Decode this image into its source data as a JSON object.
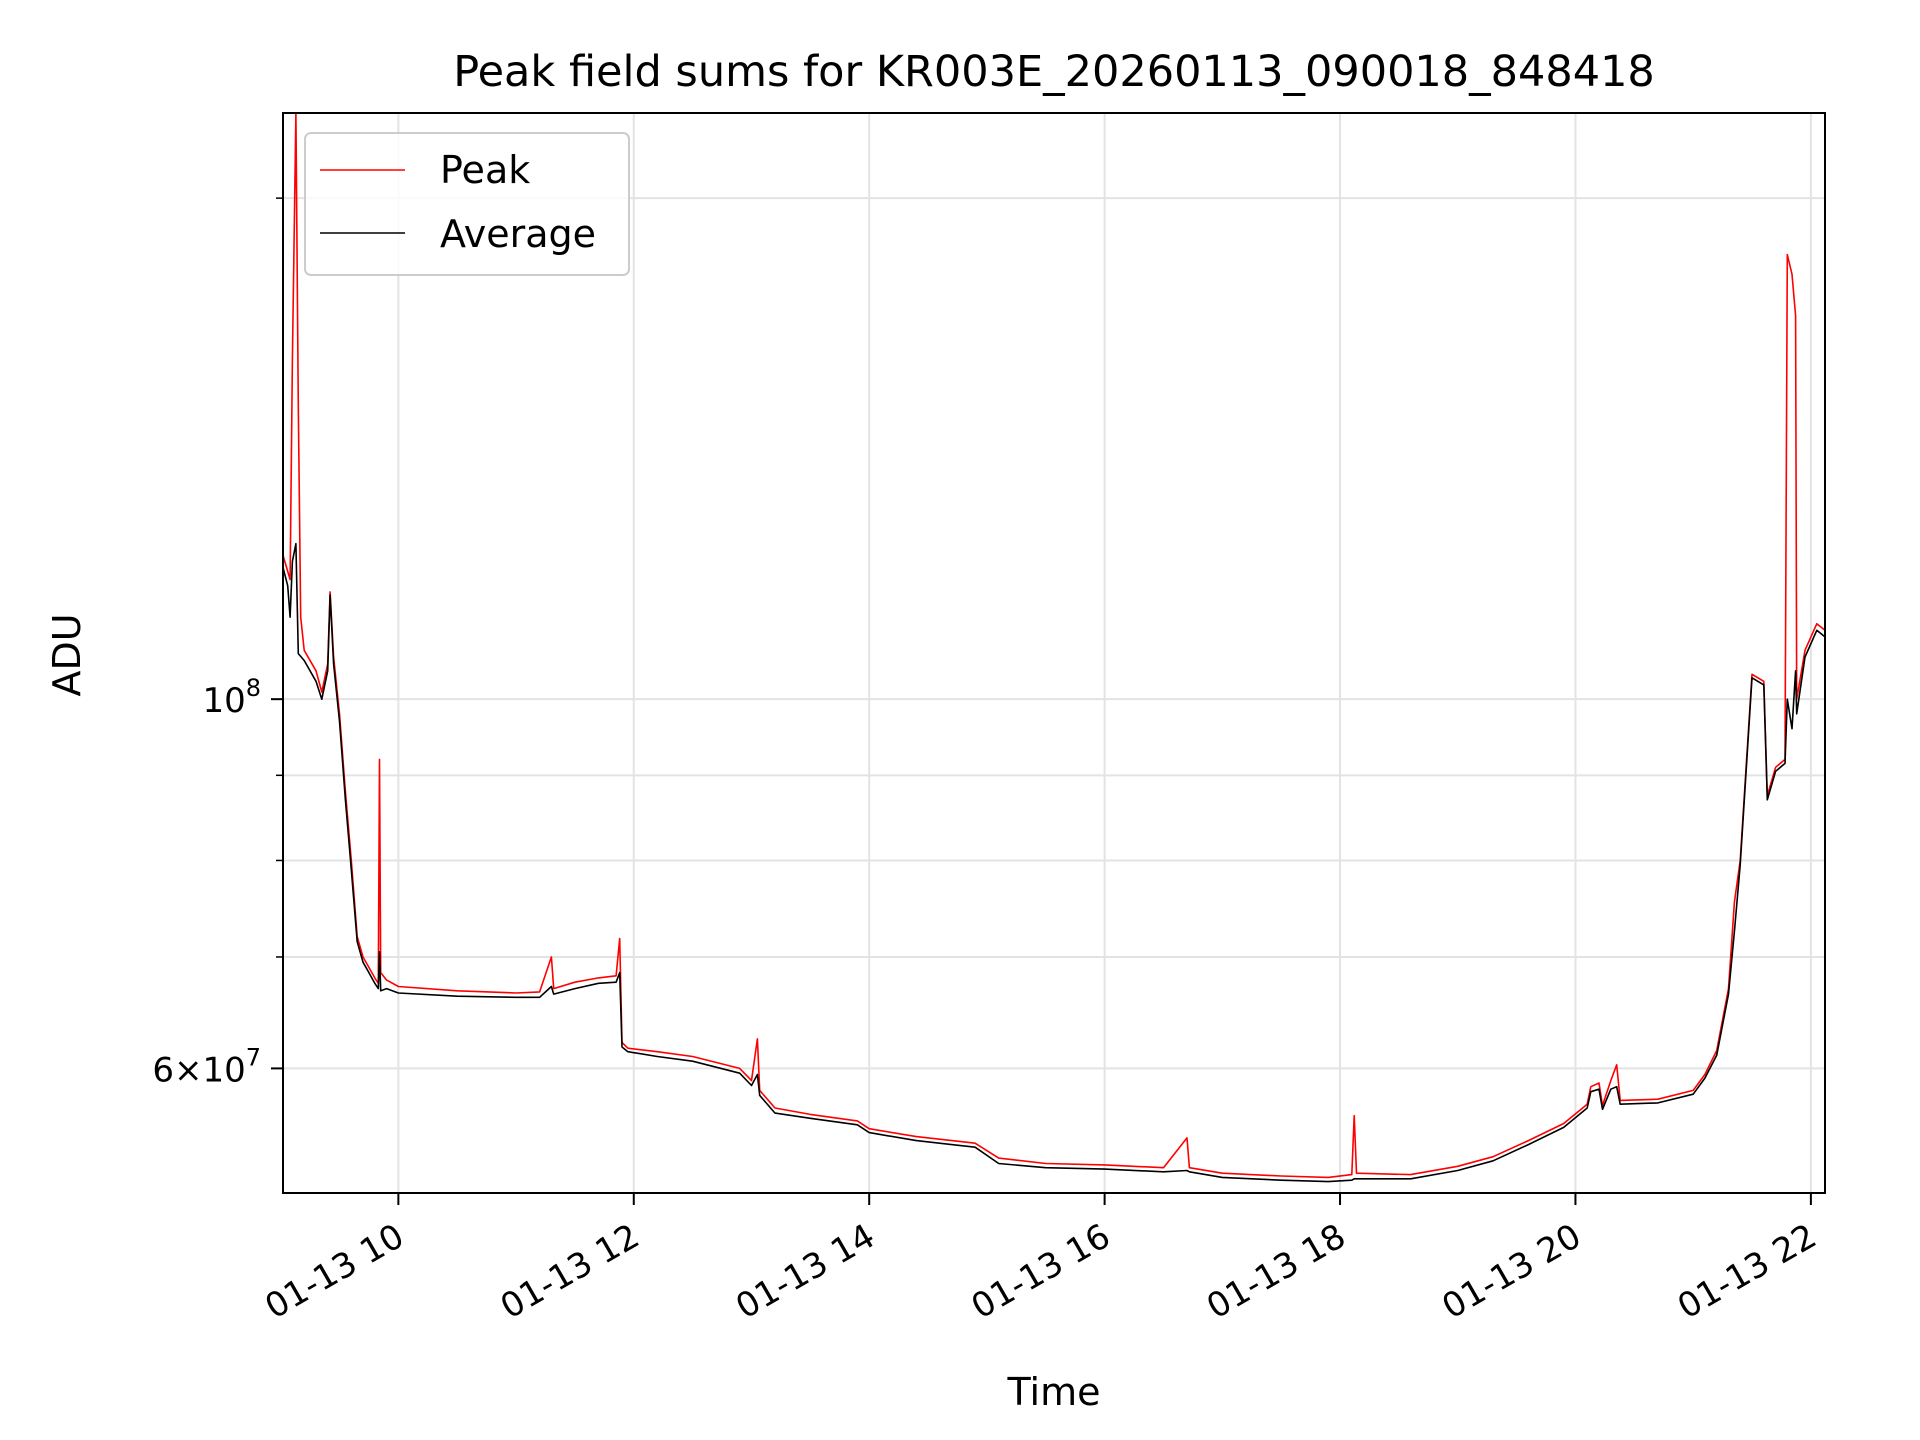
{
  "chart_data": {
    "type": "line",
    "title": "Peak field sums for KR003E_20260113_090018_848418",
    "xlabel": "Time",
    "ylabel": "ADU",
    "yscale": "log",
    "ylim": [
      50500000,
      225000000
    ],
    "xlim": [
      9.02,
      22.12
    ],
    "grid": true,
    "legend_loc": "upper-left",
    "x_ticks": [
      {
        "value": 10,
        "label": "01-13 10"
      },
      {
        "value": 12,
        "label": "01-13 12"
      },
      {
        "value": 14,
        "label": "01-13 14"
      },
      {
        "value": 16,
        "label": "01-13 16"
      },
      {
        "value": 18,
        "label": "01-13 18"
      },
      {
        "value": 20,
        "label": "01-13 20"
      },
      {
        "value": 22,
        "label": "01-13 22"
      }
    ],
    "y_major_ticks": [
      {
        "value": 100000000,
        "base": "10",
        "exp": "8"
      },
      {
        "value": 60000000,
        "base": "6×10",
        "exp": "7"
      }
    ],
    "y_minor_ticks": [
      50000000,
      70000000,
      80000000,
      90000000,
      200000000
    ],
    "series": [
      {
        "name": "Peak",
        "color": "#ff0000",
        "points": [
          [
            9.02,
            122000000
          ],
          [
            9.08,
            118000000
          ],
          [
            9.1,
            160000000
          ],
          [
            9.13,
            225000000
          ],
          [
            9.15,
            150000000
          ],
          [
            9.17,
            112000000
          ],
          [
            9.2,
            107000000
          ],
          [
            9.3,
            104000000
          ],
          [
            9.35,
            101000000
          ],
          [
            9.4,
            105000000
          ],
          [
            9.42,
            116000000
          ],
          [
            9.45,
            106000000
          ],
          [
            9.5,
            98000000
          ],
          [
            9.55,
            88000000
          ],
          [
            9.6,
            80000000
          ],
          [
            9.65,
            72000000
          ],
          [
            9.7,
            70000000
          ],
          [
            9.75,
            69000000
          ],
          [
            9.8,
            68000000
          ],
          [
            9.83,
            67500000
          ],
          [
            9.84,
            92000000
          ],
          [
            9.85,
            68500000
          ],
          [
            9.9,
            67800000
          ],
          [
            10.0,
            67200000
          ],
          [
            10.5,
            66800000
          ],
          [
            11.0,
            66600000
          ],
          [
            11.2,
            66700000
          ],
          [
            11.3,
            70000000
          ],
          [
            11.32,
            67000000
          ],
          [
            11.5,
            67600000
          ],
          [
            11.7,
            68000000
          ],
          [
            11.85,
            68200000
          ],
          [
            11.88,
            71800000
          ],
          [
            11.9,
            62200000
          ],
          [
            11.95,
            61700000
          ],
          [
            12.2,
            61400000
          ],
          [
            12.5,
            61000000
          ],
          [
            12.9,
            60000000
          ],
          [
            13.0,
            59000000
          ],
          [
            13.05,
            62500000
          ],
          [
            13.07,
            58200000
          ],
          [
            13.2,
            56800000
          ],
          [
            13.5,
            56300000
          ],
          [
            13.9,
            55800000
          ],
          [
            14.0,
            55200000
          ],
          [
            14.4,
            54600000
          ],
          [
            14.9,
            54100000
          ],
          [
            15.1,
            53000000
          ],
          [
            15.5,
            52600000
          ],
          [
            16.0,
            52500000
          ],
          [
            16.5,
            52300000
          ],
          [
            16.7,
            54500000
          ],
          [
            16.72,
            52300000
          ],
          [
            17.0,
            51900000
          ],
          [
            17.5,
            51700000
          ],
          [
            17.9,
            51600000
          ],
          [
            18.1,
            51800000
          ],
          [
            18.12,
            56200000
          ],
          [
            18.14,
            51900000
          ],
          [
            18.6,
            51800000
          ],
          [
            19.0,
            52400000
          ],
          [
            19.3,
            53100000
          ],
          [
            19.6,
            54300000
          ],
          [
            19.9,
            55600000
          ],
          [
            20.1,
            57100000
          ],
          [
            20.13,
            58500000
          ],
          [
            20.2,
            58800000
          ],
          [
            20.23,
            57000000
          ],
          [
            20.3,
            59000000
          ],
          [
            20.35,
            60300000
          ],
          [
            20.38,
            57400000
          ],
          [
            20.7,
            57500000
          ],
          [
            21.0,
            58200000
          ],
          [
            21.1,
            59500000
          ],
          [
            21.2,
            61500000
          ],
          [
            21.3,
            67000000
          ],
          [
            21.35,
            75500000
          ],
          [
            21.4,
            80000000
          ],
          [
            21.5,
            103500000
          ],
          [
            21.6,
            102500000
          ],
          [
            21.63,
            87500000
          ],
          [
            21.7,
            91000000
          ],
          [
            21.78,
            92000000
          ],
          [
            21.8,
            185000000
          ],
          [
            21.84,
            180000000
          ],
          [
            21.87,
            170000000
          ],
          [
            21.88,
            100000000
          ],
          [
            21.95,
            107000000
          ],
          [
            22.05,
            111000000
          ],
          [
            22.12,
            110000000
          ]
        ]
      },
      {
        "name": "Average",
        "color": "#000000",
        "points": [
          [
            9.02,
            120000000
          ],
          [
            9.06,
            117000000
          ],
          [
            9.08,
            112000000
          ],
          [
            9.1,
            121000000
          ],
          [
            9.13,
            124000000
          ],
          [
            9.15,
            106500000
          ],
          [
            9.2,
            105500000
          ],
          [
            9.3,
            102500000
          ],
          [
            9.35,
            100000000
          ],
          [
            9.4,
            104000000
          ],
          [
            9.42,
            115500000
          ],
          [
            9.45,
            105000000
          ],
          [
            9.5,
            97000000
          ],
          [
            9.55,
            87000000
          ],
          [
            9.6,
            79000000
          ],
          [
            9.65,
            71500000
          ],
          [
            9.7,
            69500000
          ],
          [
            9.75,
            68500000
          ],
          [
            9.8,
            67500000
          ],
          [
            9.83,
            67000000
          ],
          [
            9.84,
            70500000
          ],
          [
            9.85,
            66800000
          ],
          [
            9.9,
            67000000
          ],
          [
            10.0,
            66600000
          ],
          [
            10.5,
            66300000
          ],
          [
            11.0,
            66200000
          ],
          [
            11.2,
            66200000
          ],
          [
            11.3,
            67200000
          ],
          [
            11.32,
            66500000
          ],
          [
            11.5,
            67000000
          ],
          [
            11.7,
            67500000
          ],
          [
            11.85,
            67600000
          ],
          [
            11.88,
            68500000
          ],
          [
            11.9,
            61800000
          ],
          [
            11.95,
            61400000
          ],
          [
            12.2,
            61000000
          ],
          [
            12.5,
            60600000
          ],
          [
            12.9,
            59600000
          ],
          [
            13.0,
            58600000
          ],
          [
            13.05,
            59500000
          ],
          [
            13.07,
            57800000
          ],
          [
            13.2,
            56400000
          ],
          [
            13.5,
            56000000
          ],
          [
            13.9,
            55500000
          ],
          [
            14.0,
            54900000
          ],
          [
            14.4,
            54300000
          ],
          [
            14.9,
            53800000
          ],
          [
            15.1,
            52600000
          ],
          [
            15.5,
            52300000
          ],
          [
            16.0,
            52200000
          ],
          [
            16.5,
            52000000
          ],
          [
            16.7,
            52100000
          ],
          [
            16.72,
            52000000
          ],
          [
            17.0,
            51600000
          ],
          [
            17.5,
            51400000
          ],
          [
            17.9,
            51300000
          ],
          [
            18.1,
            51400000
          ],
          [
            18.12,
            51500000
          ],
          [
            18.14,
            51500000
          ],
          [
            18.6,
            51500000
          ],
          [
            19.0,
            52100000
          ],
          [
            19.3,
            52800000
          ],
          [
            19.6,
            54000000
          ],
          [
            19.9,
            55300000
          ],
          [
            20.1,
            56800000
          ],
          [
            20.13,
            58100000
          ],
          [
            20.2,
            58300000
          ],
          [
            20.23,
            56700000
          ],
          [
            20.3,
            58300000
          ],
          [
            20.35,
            58500000
          ],
          [
            20.38,
            57100000
          ],
          [
            20.7,
            57200000
          ],
          [
            21.0,
            57900000
          ],
          [
            21.1,
            59200000
          ],
          [
            21.2,
            61100000
          ],
          [
            21.3,
            66500000
          ],
          [
            21.35,
            72500000
          ],
          [
            21.4,
            79500000
          ],
          [
            21.5,
            103000000
          ],
          [
            21.6,
            102000000
          ],
          [
            21.63,
            87000000
          ],
          [
            21.7,
            90500000
          ],
          [
            21.78,
            91500000
          ],
          [
            21.8,
            100000000
          ],
          [
            21.84,
            96000000
          ],
          [
            21.87,
            104000000
          ],
          [
            21.88,
            98000000
          ],
          [
            21.95,
            106000000
          ],
          [
            22.05,
            110000000
          ],
          [
            22.12,
            109000000
          ]
        ]
      }
    ]
  }
}
